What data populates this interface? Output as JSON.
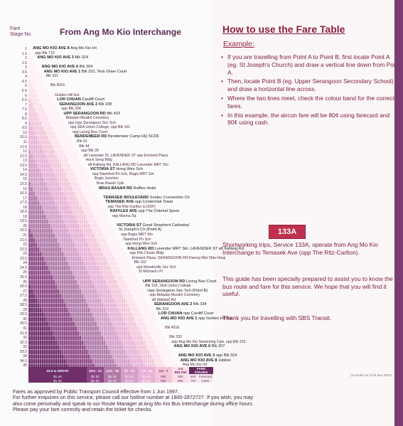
{
  "header": {
    "fare_stage_label_1": "Fare",
    "fare_stage_label_2": "Stage No.",
    "title": "From Ang Mo Kio Interchange"
  },
  "fare_stages": [
    "1",
    "1.5",
    "2",
    "2.5",
    "3",
    "3.5",
    "4",
    "4.5",
    "5",
    "5.5",
    "6",
    "6.5",
    "7",
    "7.5",
    "8",
    "8.5",
    "9",
    "9.5",
    "10",
    "10.5",
    "11",
    "11.5",
    "12",
    "12.5",
    "13",
    "13.5",
    "14",
    "14.5",
    "15",
    "15.5",
    "16",
    "16.5",
    "17",
    "17.5",
    "18",
    "18.5",
    "19",
    "19.5",
    "20",
    "20.5",
    "21",
    "21.5",
    "22",
    "22.5",
    "23",
    "23.5",
    "24",
    "24.5",
    "25",
    "25.5",
    "26",
    "26.5",
    "27",
    "27.5",
    "28",
    "28.5",
    "29",
    "29.5",
    "30",
    "30.5",
    "31",
    "31.5",
    "32",
    "32.5",
    "33",
    "33.5",
    "34",
    "34.5",
    "35"
  ],
  "stops": [
    {
      "text": "ANG MO KIO AVE 8",
      "sub": "Ang Mo Kio Int",
      "major": true
    },
    {
      "text": "",
      "sub": "opp Blk 710",
      "major": false
    },
    {
      "text": "ANG MO KIO AVE 3",
      "sub": "Blk 324",
      "major": true
    },
    {
      "text": "",
      "sub": "",
      "major": false
    },
    {
      "text": "ANG MO KIO AVE 6",
      "sub": "Blk 304",
      "major": true
    },
    {
      "text": "ANG MO KIO AVE 1",
      "sub": "Blk 310, Teck Ghee Court",
      "major": true
    },
    {
      "text": "",
      "sub": "Blk 331",
      "major": false
    },
    {
      "text": "",
      "sub": "",
      "major": false
    },
    {
      "text": "",
      "sub": "Blk 4016",
      "major": false
    },
    {
      "text": "",
      "sub": "",
      "major": false
    },
    {
      "text": "",
      "sub": "Golden Hill Est",
      "major": false
    },
    {
      "text": "LOR CHUAN",
      "sub": "Cardiff Court",
      "major": true
    },
    {
      "text": "SERANGOON AVE 2",
      "sub": "Blk 238",
      "major": true
    },
    {
      "text": "",
      "sub": "opp Blk 334",
      "major": false
    },
    {
      "text": "UPP SERANGOON RD",
      "sub": "Blk 403",
      "major": true
    },
    {
      "text": "",
      "sub": "Bidadari Muslim Cemetery",
      "major": false
    },
    {
      "text": "",
      "sub": "opp Upp Serangoon Sec Sch",
      "major": false
    },
    {
      "text": "",
      "sub": "opp SEA Union College, opp Blk 101",
      "major": false
    },
    {
      "text": "",
      "sub": "opp Leong Bee Court",
      "major": false
    },
    {
      "text": "BENDEMEER RD",
      "sub": "Bendemeer Camp HQ SCDF",
      "major": true
    },
    {
      "text": "",
      "sub": "Blk 53",
      "major": false
    },
    {
      "text": "",
      "sub": "Blk 44",
      "major": false
    },
    {
      "text": "",
      "sub": "opp Blk 28",
      "major": false
    },
    {
      "text": "",
      "sub": "aft Lavender St,  LAVENDER ST  opp Eminent Plaza",
      "major": false
    },
    {
      "text": "",
      "sub": "Hock Seng Bldg",
      "major": false
    },
    {
      "text": "",
      "sub": "aft Kallang Rd,  KALLANG RD  Lavender MRT Stn",
      "major": false
    },
    {
      "text": "VICTORIA ST",
      "sub": "Hong Wen Sch",
      "major": true
    },
    {
      "text": "",
      "sub": "opp Stamford Pri Sch, Bugis MRT Stn",
      "major": false
    },
    {
      "text": "",
      "sub": "Bugis Junction",
      "major": false
    },
    {
      "text": "",
      "sub": "Bras Basah Cplx",
      "major": false
    },
    {
      "text": "BRAS BASAH RD",
      "sub": "Raffles Hotel",
      "major": true
    },
    {
      "text": "",
      "sub": "",
      "major": false
    },
    {
      "text": "TEMASEK BOULEVARD",
      "sub": "Suntec Convention Ctr",
      "major": true
    },
    {
      "text": "TEMASEK AVE",
      "sub": "opp Centennial Tower",
      "major": true
    },
    {
      "text": "",
      "sub": "opp The Ritz-Carlton (LOOP)",
      "major": false
    },
    {
      "text": "RAFFLES AVE",
      "sub": "opp The Oriental Spore",
      "major": true
    },
    {
      "text": "",
      "sub": "opp Marina Sq",
      "major": false
    },
    {
      "text": "",
      "sub": "",
      "major": false
    },
    {
      "text": "VICTORIA ST",
      "sub": "Good Shepherd Cathedral",
      "major": true
    },
    {
      "text": "",
      "sub": "St Joseph's Ch (Point A)",
      "major": true
    },
    {
      "text": "",
      "sub": "opp Bugis MRT Stn",
      "major": false
    },
    {
      "text": "",
      "sub": "Stamford Pri Sch",
      "major": false
    },
    {
      "text": "",
      "sub": "opp Hong Wen Sch",
      "major": false
    },
    {
      "text": "KALLANG RD",
      "sub": "Lavender MRT Stn,  LAVENDER ST  aft Kallang Rd",
      "major": true
    },
    {
      "text": "",
      "sub": "opp Pek Chuan Bldg",
      "major": false
    },
    {
      "text": "",
      "sub": "Eminent Plaza,  SERANGOON RD  Kwong Wai Shiu Hosp",
      "major": false
    },
    {
      "text": "",
      "sub": "Blk 102",
      "major": false
    },
    {
      "text": "",
      "sub": "opp Woodsville Sec Sch",
      "major": false
    },
    {
      "text": "",
      "sub": "St Michael's Pl",
      "major": false
    },
    {
      "text": "",
      "sub": "",
      "major": false
    },
    {
      "text": "UPP SERANGOON RD",
      "sub": "Leong Bee Court",
      "major": true
    },
    {
      "text": "",
      "sub": "Blk 103, SEA Union College",
      "major": false
    },
    {
      "text": "",
      "sub": "Upp Serangoon Sec Sch (Point B)",
      "major": true
    },
    {
      "text": "",
      "sub": "opp Bidadari Muslim Cemetery",
      "major": false
    },
    {
      "text": "",
      "sub": "aft Walsket Rd",
      "major": false
    },
    {
      "text": "SERANGOON AVE 2",
      "sub": "Blk 334",
      "major": true
    },
    {
      "text": "",
      "sub": "Blk 319",
      "major": false
    },
    {
      "text": "LOR CHUAN",
      "sub": "opp Cardiff Court",
      "major": true
    },
    {
      "text": "ANG MO KIO AVE 1",
      "sub": "opp Golden Hill Est",
      "major": true
    },
    {
      "text": "",
      "sub": "",
      "major": false
    },
    {
      "text": "",
      "sub": "Blk 4016",
      "major": false
    },
    {
      "text": "",
      "sub": "",
      "major": false
    },
    {
      "text": "",
      "sub": "Blk 333",
      "major": false
    },
    {
      "text": "",
      "sub": "opp Ang Mo Kio Swimming Cplx, opp Blk 315",
      "major": false
    },
    {
      "text": "ANG MO KIO AVE 6",
      "sub": "Blk 207",
      "major": true
    },
    {
      "text": "",
      "sub": "",
      "major": false
    },
    {
      "text": "ANG MO KIO AVE 3",
      "sub": "opp Blk 324",
      "major": true
    },
    {
      "text": "ANG MO KIO AVE 8",
      "sub": "Jubilee",
      "major": true
    },
    {
      "text": "",
      "sub": "Ang Mo Kio Int",
      "major": false
    }
  ],
  "legend": {
    "heads": [
      "33.5 & ABOVE",
      "18.5 - 23",
      "13.5 - 18",
      "10 - 13",
      "7.5 - 10",
      "4.5 - 7",
      "4 & BELOW",
      "FARE STAGES"
    ],
    "row1": [
      "$1.40",
      "$1.30",
      "$1.20",
      "$1.10",
      "$1.00",
      "90¢",
      "80¢",
      "60¢",
      "Farecard"
    ],
    "row2": [
      "$1.40",
      "$1.30",
      "$1.20",
      "$1.10",
      "$1.00",
      "90¢",
      "80¢",
      "70¢",
      "Cash"
    ],
    "label_aircon": "AIRCON",
    "revision": "(Accurate as of 26 Mar 2002)",
    "colors": [
      "#6e2f6a",
      "#8e4a86",
      "#b07aa9",
      "#d49fc9",
      "#e8b3d6",
      "#f3c6dc",
      "#fbe0ea",
      "#fff1f5"
    ]
  },
  "footer": {
    "line1": "Fares as approved by Public Transport Council effective from 1 Jun 1997.",
    "line2": "For further enquiries on this service, please call our hotline number at 1800-2872727.  If you wish, you may",
    "line3": "also come personally and speak to our Route Manager at Ang Mo Kio Bus Interchange during office hours.",
    "line4": "Please pay your fare correctly and retain the ticket for checks."
  },
  "howto": {
    "title": "How to use the Fare Table",
    "example": "Example:",
    "step1": "If you are travelling from Point A to Point B, first locate Point A (eg. St Joseph's Church) and draw a vertical line down from Point A.",
    "step2": "Then, locate Point B (eg. Upper Serangoon Secondary School) and draw a horizontal line across.",
    "step3": "Where the two lines meet, check the colour band for the correct fares.",
    "step4": "In this example, the aircon fare will be 80¢ using farecard and 90¢ using cash."
  },
  "short": {
    "badge": "133A",
    "text": "Shortworking trips, Service 133A, operate from Ang Mo Kio Interchange to Temasek Ave (opp The Ritz-Carlton)."
  },
  "guide": "This guide has been specially prepared to assist you to know the bus route and fare for this service. We hope that you will find it useful.",
  "thanks": "Thank you for travelling with SBS Transit."
}
